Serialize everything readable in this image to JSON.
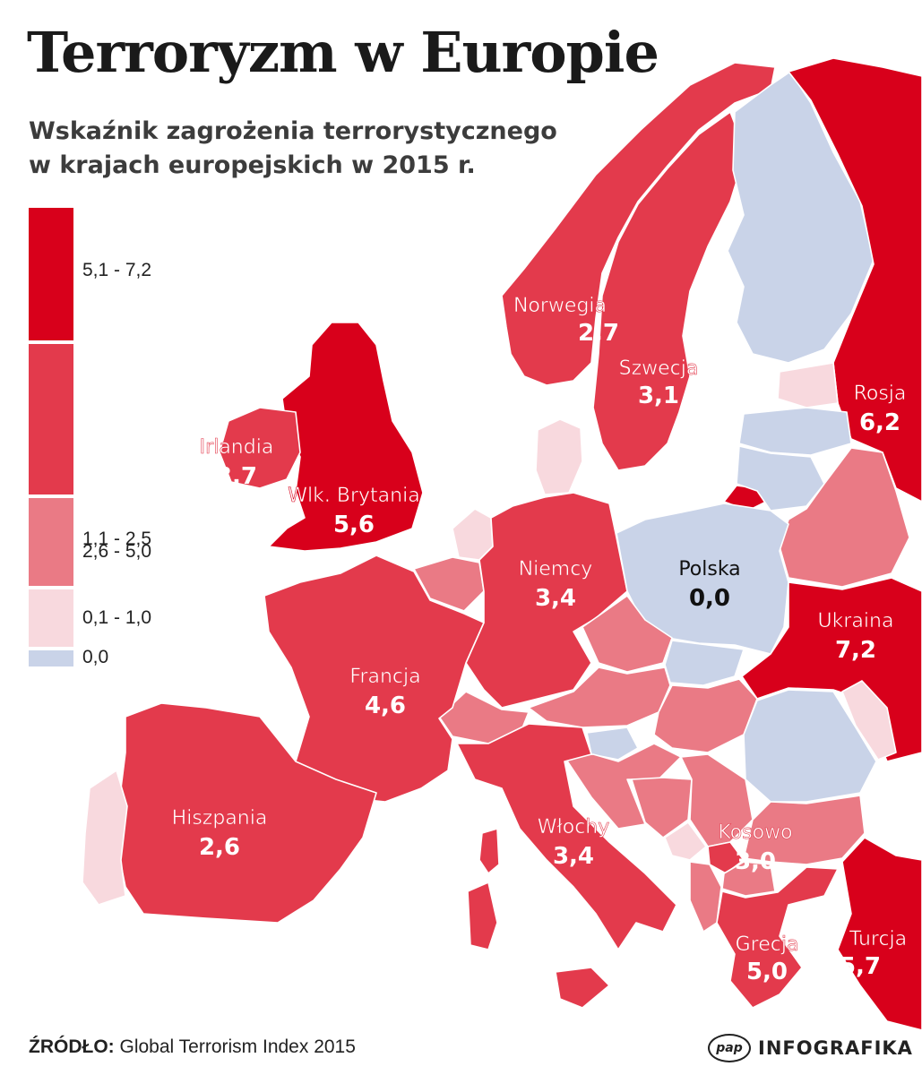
{
  "title": "Terroryzm w Europie",
  "subtitle": {
    "line1": "Wskaźnik zagrożenia terrorystycznego",
    "line2": "w krajach europejskich w 2015 r."
  },
  "legend": [
    {
      "label": "5,1 - 7,2",
      "color": "#d8001b"
    },
    {
      "label": "2,6 - 5,0",
      "color": "#e33a4c"
    },
    {
      "label": "1,1 - 2,5",
      "color": "#ea7a85"
    },
    {
      "label": "0,1 - 1,0",
      "color": "#f8d9de"
    },
    {
      "label": "0,0",
      "color": "#c9d3e8"
    }
  ],
  "countries": [
    {
      "name": "Norwegia",
      "value": "2,7"
    },
    {
      "name": "Szwecja",
      "value": "3,1"
    },
    {
      "name": "Rosja",
      "value": "6,2"
    },
    {
      "name": "Irlandia",
      "value": "3,7"
    },
    {
      "name": "Wlk. Brytania",
      "value": "5,6"
    },
    {
      "name": "Niemcy",
      "value": "3,4"
    },
    {
      "name": "Polska",
      "value": "0,0"
    },
    {
      "name": "Ukraina",
      "value": "7,2"
    },
    {
      "name": "Francja",
      "value": "4,6"
    },
    {
      "name": "Hiszpania",
      "value": "2,6"
    },
    {
      "name": "Włochy",
      "value": "3,4"
    },
    {
      "name": "Kosowo",
      "value": "3,0"
    },
    {
      "name": "Grecja",
      "value": "5,0"
    },
    {
      "name": "Turcja",
      "value": "5,7"
    }
  ],
  "footer": {
    "source_label": "ŹRÓDŁO:",
    "source_text": "Global Terrorism Index 2015",
    "logo": "pap",
    "brand": "INFOGRAFIKA"
  }
}
